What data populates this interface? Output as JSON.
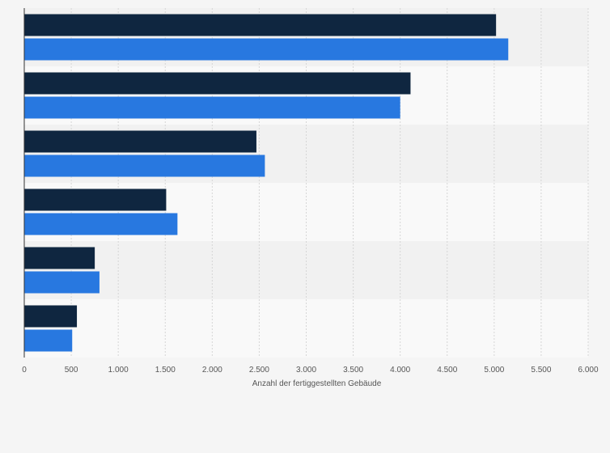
{
  "chart_data": {
    "type": "bar",
    "orientation": "horizontal",
    "title": "",
    "xlabel": "Anzahl der fertiggestellten Gebäude",
    "ylabel": "",
    "xlim": [
      0,
      6000
    ],
    "x_ticks": [
      0,
      500,
      1000,
      1500,
      2000,
      2500,
      3000,
      3500,
      4000,
      4500,
      5000,
      5500,
      6000
    ],
    "x_tick_labels": [
      "0",
      "500",
      "1.000",
      "1.500",
      "2.000",
      "2.500",
      "3.000",
      "3.500",
      "4.000",
      "4.500",
      "5.000",
      "5.500",
      "6.000"
    ],
    "grid": true,
    "legend": "none",
    "categories": [
      "",
      "",
      "",
      "",
      "",
      ""
    ],
    "series": [
      {
        "color": "#0f2640",
        "values": [
          5020,
          4110,
          2470,
          1510,
          750,
          560
        ]
      },
      {
        "color": "#2878e0",
        "values": [
          5150,
          4000,
          2560,
          1630,
          800,
          510
        ]
      }
    ]
  }
}
